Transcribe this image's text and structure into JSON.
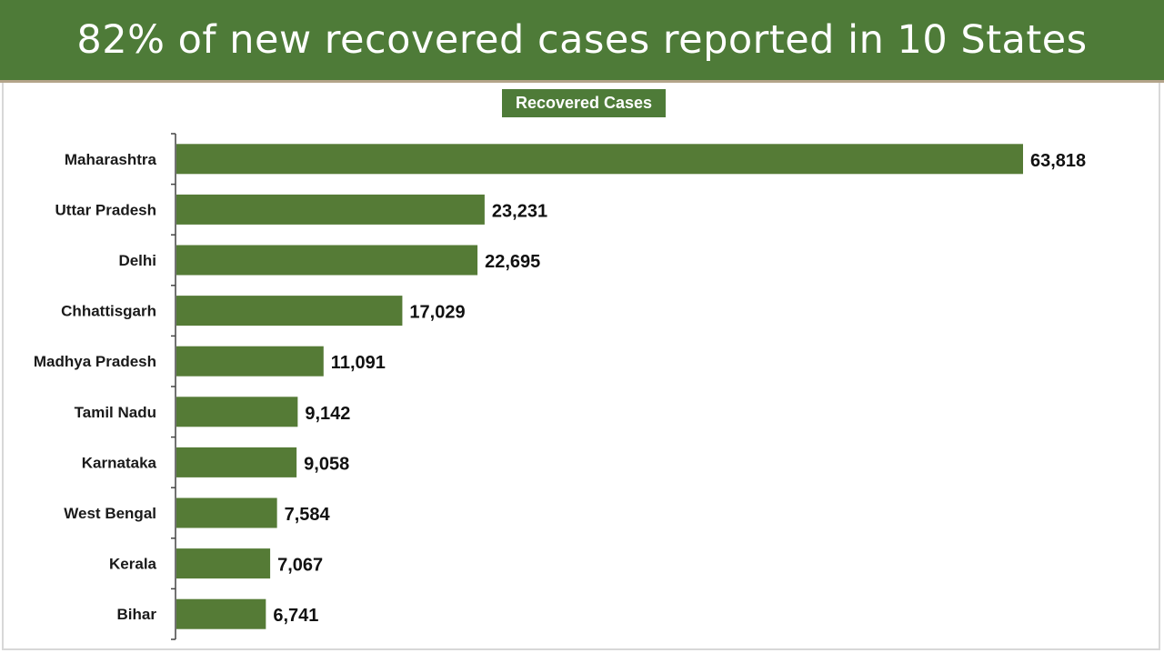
{
  "header": {
    "title": "82% of new recovered cases reported in 10 States"
  },
  "legend": {
    "label": "Recovered Cases"
  },
  "colors": {
    "banner": "#4e7b38",
    "bar": "#557b36"
  },
  "chart_data": {
    "type": "bar",
    "orientation": "horizontal",
    "title": "82% of new recovered cases reported in 10 States",
    "categories": [
      "Maharashtra",
      "Uttar Pradesh",
      "Delhi",
      "Chhattisgarh",
      "Madhya Pradesh",
      "Tamil Nadu",
      "Karnataka",
      "West Bengal",
      "Kerala",
      "Bihar"
    ],
    "series": [
      {
        "name": "Recovered Cases",
        "values": [
          63818,
          23231,
          22695,
          17029,
          11091,
          9142,
          9058,
          7584,
          7067,
          6741
        ]
      }
    ],
    "value_labels": [
      "63,818",
      "23,231",
      "22,695",
      "17,029",
      "11,091",
      "9,142",
      "9,058",
      "7,584",
      "7,067",
      "6,741"
    ],
    "xlim": [
      0,
      63818
    ],
    "grid": false,
    "legend_position": "top-center"
  }
}
